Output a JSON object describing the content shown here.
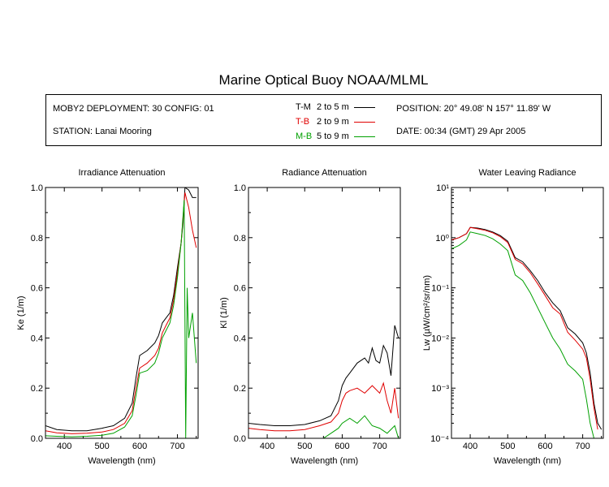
{
  "title": "Marine Optical Buoy NOAA/MLML",
  "info": {
    "deployment": "MOBY2 DEPLOYMENT: 30 CONFIG: 01",
    "station": "STATION: Lanai Mooring",
    "position": "POSITION: 20° 49.08' N   157° 11.89' W",
    "date": "DATE: 00:34 (GMT) 29 Apr 2005",
    "legend": [
      {
        "code": "T-M",
        "range": "2 to 5  m",
        "color": "#000000"
      },
      {
        "code": "T-B",
        "range": "2 to 9  m",
        "color": "#e00000"
      },
      {
        "code": "M-B",
        "range": "5 to 9  m",
        "color": "#00a000"
      }
    ]
  },
  "chart_data": [
    {
      "type": "line",
      "title": "Irradiance Attenuation",
      "xlabel": "Wavelength (nm)",
      "ylabel": "Ke  (1/m)",
      "xlim": [
        350,
        755
      ],
      "ylim": [
        0,
        1.0
      ],
      "xticks": [
        400,
        500,
        600,
        700
      ],
      "xtick_labels": [
        "400",
        "500",
        "600",
        "700"
      ],
      "yticks": [
        0,
        0.2,
        0.4,
        0.6,
        0.8,
        1.0
      ],
      "ytick_labels": [
        "0.0",
        "0.2",
        "0.4",
        "0.6",
        "0.8",
        "1.0"
      ],
      "series": [
        {
          "name": "T-M",
          "color": "#000000",
          "x": [
            350,
            380,
            420,
            460,
            500,
            530,
            560,
            580,
            590,
            600,
            620,
            640,
            650,
            660,
            670,
            680,
            690,
            700,
            710,
            715,
            720,
            730,
            740,
            750
          ],
          "y": [
            0.05,
            0.035,
            0.03,
            0.03,
            0.04,
            0.05,
            0.08,
            0.14,
            0.24,
            0.33,
            0.35,
            0.38,
            0.41,
            0.46,
            0.48,
            0.5,
            0.57,
            0.68,
            0.78,
            0.86,
            1.0,
            0.99,
            0.96,
            0.96
          ]
        },
        {
          "name": "T-B",
          "color": "#e00000",
          "x": [
            350,
            380,
            420,
            460,
            500,
            530,
            560,
            580,
            590,
            600,
            620,
            640,
            650,
            660,
            670,
            680,
            690,
            700,
            710,
            720,
            730,
            740,
            750
          ],
          "y": [
            0.03,
            0.022,
            0.018,
            0.02,
            0.025,
            0.035,
            0.06,
            0.11,
            0.2,
            0.28,
            0.3,
            0.33,
            0.36,
            0.42,
            0.45,
            0.48,
            0.55,
            0.66,
            0.78,
            0.98,
            0.92,
            0.83,
            0.76
          ]
        },
        {
          "name": "M-B",
          "color": "#00a000",
          "x": [
            350,
            380,
            420,
            460,
            500,
            530,
            560,
            580,
            590,
            600,
            620,
            640,
            650,
            660,
            670,
            680,
            690,
            700,
            710,
            718,
            722,
            726,
            730,
            740,
            750
          ],
          "y": [
            0.01,
            0.008,
            0.006,
            0.008,
            0.012,
            0.02,
            0.045,
            0.09,
            0.17,
            0.26,
            0.27,
            0.3,
            0.34,
            0.4,
            0.43,
            0.46,
            0.53,
            0.64,
            0.78,
            0.95,
            0.0,
            0.6,
            0.4,
            0.5,
            0.3
          ]
        }
      ]
    },
    {
      "type": "line",
      "title": "Radiance Attenuation",
      "xlabel": "Wavelength (nm)",
      "ylabel": "Kl  (1/m)",
      "xlim": [
        350,
        755
      ],
      "ylim": [
        0,
        1.0
      ],
      "xticks": [
        400,
        500,
        600,
        700
      ],
      "xtick_labels": [
        "400",
        "500",
        "600",
        "700"
      ],
      "yticks": [
        0,
        0.2,
        0.4,
        0.6,
        0.8,
        1.0
      ],
      "ytick_labels": [
        "0.0",
        "0.2",
        "0.4",
        "0.6",
        "0.8",
        "1.0"
      ],
      "series": [
        {
          "name": "T-M",
          "color": "#000000",
          "x": [
            350,
            380,
            420,
            460,
            500,
            540,
            570,
            590,
            600,
            610,
            620,
            640,
            660,
            670,
            680,
            690,
            700,
            710,
            720,
            730,
            740,
            750
          ],
          "y": [
            0.06,
            0.055,
            0.05,
            0.05,
            0.055,
            0.07,
            0.09,
            0.15,
            0.21,
            0.24,
            0.26,
            0.3,
            0.32,
            0.3,
            0.36,
            0.31,
            0.3,
            0.37,
            0.34,
            0.25,
            0.45,
            0.4
          ]
        },
        {
          "name": "T-B",
          "color": "#e00000",
          "x": [
            350,
            380,
            420,
            460,
            500,
            540,
            570,
            590,
            600,
            610,
            620,
            640,
            660,
            680,
            700,
            710,
            720,
            730,
            740,
            750
          ],
          "y": [
            0.04,
            0.035,
            0.03,
            0.03,
            0.035,
            0.05,
            0.065,
            0.1,
            0.15,
            0.18,
            0.19,
            0.2,
            0.18,
            0.21,
            0.18,
            0.22,
            0.15,
            0.1,
            0.2,
            0.08
          ]
        },
        {
          "name": "M-B",
          "color": "#00a000",
          "x": [
            550,
            570,
            590,
            600,
            620,
            640,
            660,
            680,
            700,
            720,
            740,
            750
          ],
          "y": [
            0.0,
            0.02,
            0.04,
            0.06,
            0.08,
            0.06,
            0.09,
            0.05,
            0.04,
            0.02,
            0.05,
            0.0
          ]
        }
      ]
    },
    {
      "type": "line",
      "title": "Water Leaving Radiance",
      "xlabel": "Wavelength (nm)",
      "ylabel": "Lw  (µW/cm²/sr/nm)",
      "yscale": "log",
      "xlim": [
        350,
        755
      ],
      "ylim": [
        0.0001,
        10
      ],
      "xticks": [
        400,
        500,
        600,
        700
      ],
      "xtick_labels": [
        "400",
        "500",
        "600",
        "700"
      ],
      "yticks": [
        0.0001,
        0.001,
        0.01,
        0.1,
        1,
        10
      ],
      "ytick_labels": [
        "10⁻⁴",
        "10⁻³",
        "10⁻²",
        "10⁻¹",
        "10⁰",
        "10¹"
      ],
      "series": [
        {
          "name": "T-M",
          "color": "#000000",
          "x": [
            350,
            370,
            390,
            400,
            420,
            440,
            460,
            480,
            500,
            520,
            540,
            560,
            580,
            600,
            620,
            640,
            660,
            680,
            700,
            710,
            720,
            730,
            740,
            750
          ],
          "y": [
            0.9,
            1.0,
            1.2,
            1.6,
            1.55,
            1.45,
            1.3,
            1.1,
            0.85,
            0.4,
            0.33,
            0.22,
            0.14,
            0.08,
            0.05,
            0.035,
            0.016,
            0.012,
            0.008,
            0.005,
            0.002,
            0.0005,
            0.0002,
            0.00015
          ]
        },
        {
          "name": "T-B",
          "color": "#e00000",
          "x": [
            350,
            370,
            390,
            400,
            420,
            440,
            460,
            480,
            500,
            520,
            540,
            560,
            580,
            600,
            620,
            640,
            660,
            680,
            700,
            710,
            720,
            730,
            740
          ],
          "y": [
            0.9,
            1.0,
            1.2,
            1.6,
            1.5,
            1.4,
            1.25,
            1.05,
            0.8,
            0.37,
            0.3,
            0.2,
            0.12,
            0.07,
            0.04,
            0.03,
            0.013,
            0.009,
            0.006,
            0.004,
            0.0015,
            0.0004,
            0.00015
          ]
        },
        {
          "name": "M-B",
          "color": "#00a000",
          "x": [
            350,
            370,
            390,
            400,
            420,
            440,
            460,
            480,
            500,
            520,
            540,
            560,
            580,
            600,
            620,
            640,
            660,
            680,
            700,
            710,
            720,
            730
          ],
          "y": [
            0.6,
            0.7,
            0.9,
            1.3,
            1.2,
            1.1,
            0.95,
            0.75,
            0.55,
            0.18,
            0.14,
            0.08,
            0.04,
            0.02,
            0.01,
            0.006,
            0.003,
            0.0022,
            0.0015,
            0.0006,
            0.0002,
            0.0001
          ]
        }
      ]
    }
  ]
}
